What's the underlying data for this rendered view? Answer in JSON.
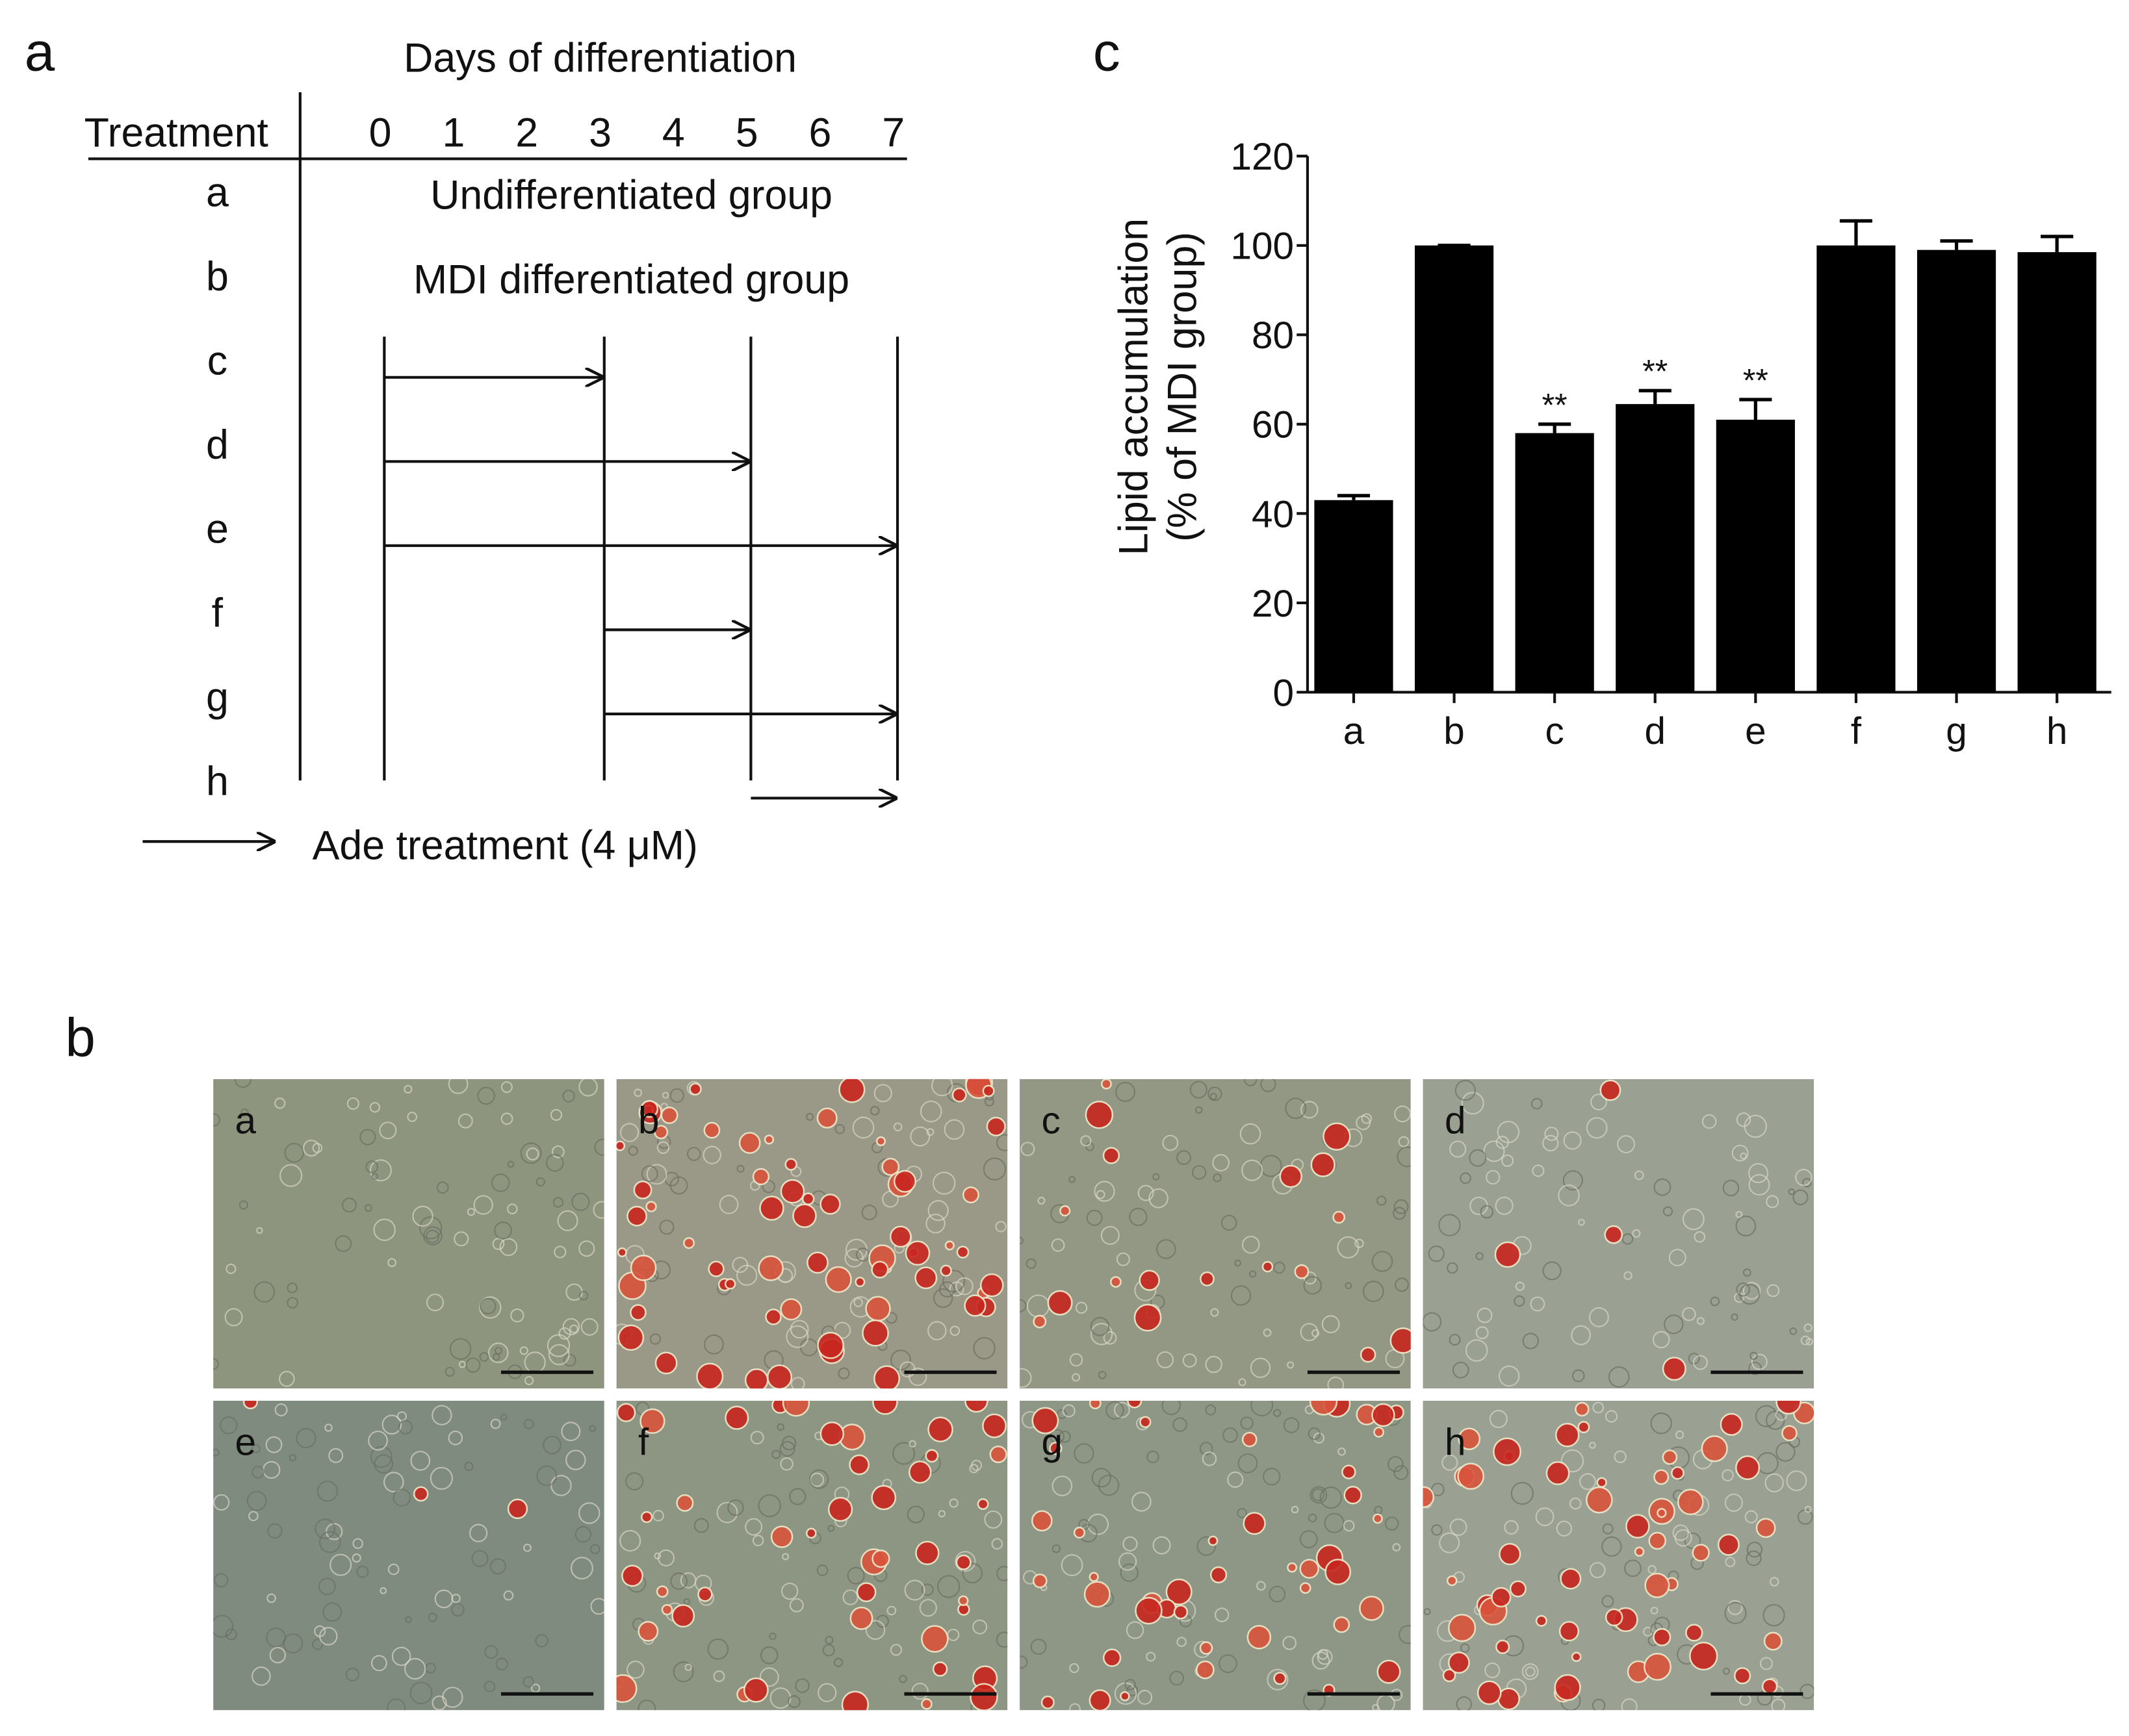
{
  "panel_a": {
    "label": "a",
    "title": "Days of differentiation",
    "row_header": "Treatment",
    "days": [
      0,
      1,
      2,
      3,
      4,
      5,
      6,
      7
    ],
    "rows": [
      {
        "label": "a",
        "text": "Undifferentiated group"
      },
      {
        "label": "b",
        "text": "MDI differentiated group"
      },
      {
        "label": "c",
        "arrow": {
          "start": 0,
          "end": 3
        }
      },
      {
        "label": "d",
        "arrow": {
          "start": 0,
          "end": 5
        }
      },
      {
        "label": "e",
        "arrow": {
          "start": 0,
          "end": 7
        }
      },
      {
        "label": "f",
        "arrow": {
          "start": 3,
          "end": 5
        }
      },
      {
        "label": "g",
        "arrow": {
          "start": 3,
          "end": 7
        }
      },
      {
        "label": "h",
        "arrow": {
          "start": 5,
          "end": 7
        }
      }
    ],
    "legend": "Ade treatment (4 μM)"
  },
  "panel_b": {
    "label": "b",
    "images": [
      "a",
      "b",
      "c",
      "d",
      "e",
      "f",
      "g",
      "h"
    ]
  },
  "chart_data": {
    "type": "bar",
    "label": "c",
    "y_label": [
      "Lipid accumulation",
      "(% of MDI group)"
    ],
    "categories": [
      "a",
      "b",
      "c",
      "d",
      "e",
      "f",
      "g",
      "h"
    ],
    "values": [
      43,
      100,
      58,
      64.5,
      61,
      100,
      99,
      98.5
    ],
    "errors": [
      1,
      0,
      2,
      3,
      4.5,
      5.5,
      2,
      3.5
    ],
    "color": "#000000",
    "annotations": [
      {
        "category": "c",
        "text": "**"
      },
      {
        "category": "d",
        "text": "**"
      },
      {
        "category": "e",
        "text": "**"
      }
    ],
    "ylim": [
      0,
      120
    ],
    "yticks": [
      0,
      20,
      40,
      60,
      80,
      100,
      120
    ]
  }
}
